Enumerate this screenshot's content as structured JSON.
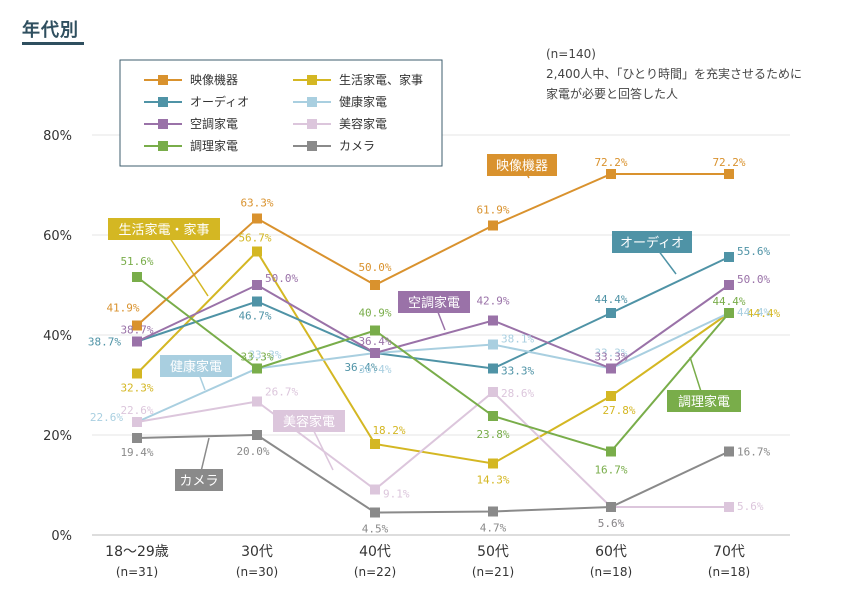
{
  "page": {
    "title": "年代別",
    "note_line1": "(n=140)",
    "note_line2": "2,400人中、「ひとり時間」を充実させるために",
    "note_line3": "家電が必要と回答した人"
  },
  "chart_data": {
    "type": "line",
    "categories": [
      "18〜29歳",
      "30代",
      "40代",
      "50代",
      "60代",
      "70代"
    ],
    "category_n": [
      "(n=31)",
      "(n=30)",
      "(n=22)",
      "(n=21)",
      "(n=18)",
      "(n=18)"
    ],
    "y_ticks": [
      "0%",
      "20%",
      "40%",
      "60%",
      "80%"
    ],
    "ylim": [
      0,
      80
    ],
    "grid": true,
    "legend_position": "top-left",
    "series": [
      {
        "name": "映像機器",
        "color": "#d9922e",
        "marker": "square",
        "values": [
          41.9,
          63.3,
          50.0,
          61.9,
          72.2,
          72.2
        ],
        "labels": [
          "41.9%",
          "63.3%",
          "50.0%",
          "61.9%",
          "72.2%",
          "72.2%"
        ],
        "label_offset": "above"
      },
      {
        "name": "生活家電、家事",
        "color": "#d4b723",
        "marker": "square",
        "values": [
          32.3,
          56.7,
          18.2,
          14.3,
          27.8,
          44.4
        ],
        "labels": [
          "32.3%",
          "56.7%",
          "18.2%",
          "14.3%",
          "27.8%",
          "44.4%"
        ],
        "label_offset": "mixed"
      },
      {
        "name": "オーディオ",
        "color": "#4f93a6",
        "marker": "square",
        "values": [
          38.7,
          46.7,
          36.4,
          33.3,
          44.4,
          55.6
        ],
        "labels": [
          "38.7%",
          "46.7%",
          "36.4%",
          "33.3%",
          "44.4%",
          "55.6%"
        ],
        "label_offset": "mixed"
      },
      {
        "name": "健康家電",
        "color": "#a9cfe0",
        "marker": "square",
        "values": [
          22.6,
          33.3,
          36.4,
          38.1,
          33.3,
          44.4
        ],
        "labels": [
          "22.6%",
          "33.3%",
          "36.4%",
          "38.1%",
          "33.3%",
          "44.4%"
        ],
        "label_offset": "mixed"
      },
      {
        "name": "空調家電",
        "color": "#9a72a8",
        "marker": "square",
        "values": [
          38.7,
          50.0,
          36.4,
          42.9,
          33.3,
          50.0
        ],
        "labels": [
          "38.7%",
          "50.0%",
          "36.4%",
          "42.9%",
          "33.3%",
          "50.0%"
        ],
        "label_offset": "mixed"
      },
      {
        "name": "美容家電",
        "color": "#dcc6dc",
        "marker": "square",
        "values": [
          22.6,
          26.7,
          9.1,
          28.6,
          5.6,
          5.6
        ],
        "labels": [
          "22.6%",
          "26.7%",
          "9.1%",
          "28.6%",
          "5.6%",
          "5.6%"
        ],
        "label_offset": "mixed"
      },
      {
        "name": "調理家電",
        "color": "#79ad4a",
        "marker": "square",
        "values": [
          51.6,
          33.3,
          40.9,
          23.8,
          16.7,
          44.4
        ],
        "labels": [
          "51.6%",
          "33.3%",
          "40.9%",
          "23.8%",
          "16.7%",
          "44.4%"
        ],
        "label_offset": "mixed"
      },
      {
        "name": "カメラ",
        "color": "#8a8a8a",
        "marker": "square",
        "values": [
          19.4,
          20.0,
          4.5,
          4.7,
          5.6,
          16.7
        ],
        "labels": [
          "19.4%",
          "20.0%",
          "4.5%",
          "4.7%",
          "5.6%",
          "16.7%"
        ],
        "label_offset": "mixed"
      }
    ],
    "callouts": [
      {
        "text": "映像機器",
        "series": "映像機器"
      },
      {
        "text": "生活家電・家事",
        "series": "生活家電、家事"
      },
      {
        "text": "オーディオ",
        "series": "オーディオ"
      },
      {
        "text": "空調家電",
        "series": "空調家電"
      },
      {
        "text": "健康家電",
        "series": "健康家電"
      },
      {
        "text": "美容家電",
        "series": "美容家電"
      },
      {
        "text": "調理家電",
        "series": "調理家電"
      },
      {
        "text": "カメラ",
        "series": "カメラ"
      }
    ]
  }
}
